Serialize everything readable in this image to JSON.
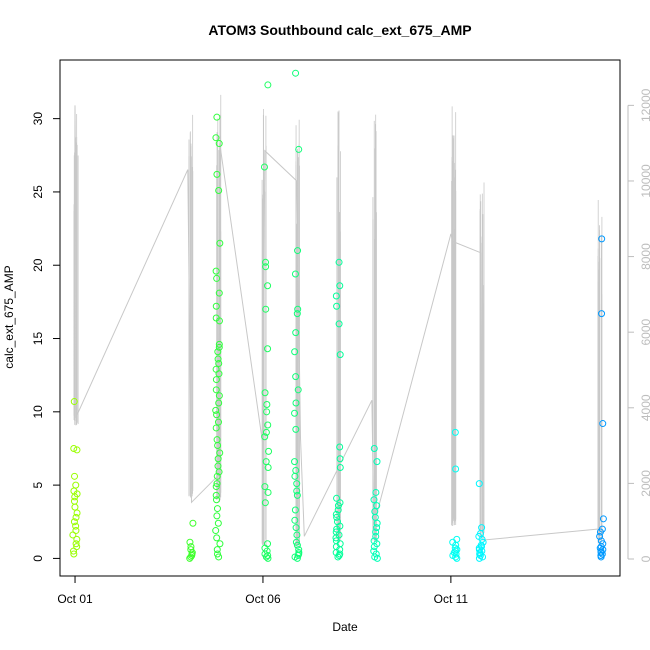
{
  "chart_data": {
    "type": "scatter",
    "title": "ATOM3 Southbound calc_ext_675_AMP",
    "xlabel": "Date",
    "ylabel": "calc_ext_675_AMP",
    "x_ticks": [
      "Oct 01",
      "Oct 06",
      "Oct 11"
    ],
    "x_tick_days": [
      1,
      6,
      11
    ],
    "xlim": [
      0.6,
      15.5
    ],
    "ylim": [
      -1.2,
      34.0
    ],
    "y_ticks": [
      0,
      5,
      10,
      15,
      20,
      25,
      30
    ],
    "y2_ticks": [
      0,
      2000,
      4000,
      6000,
      8000,
      10000,
      12000
    ],
    "y2lim": [
      -450,
      13200
    ],
    "grid": false,
    "legend": "none",
    "colors": {
      "secondary_line": "#c8c8c8",
      "right_axis": "#bdbdbd",
      "point_gradient": [
        "#99ff00",
        "#33ff33",
        "#00ff99",
        "#00ffff",
        "#0099ff"
      ]
    },
    "series": [
      {
        "points": [
          {
            "day": 1.0,
            "values": [
              10.7,
              7.5,
              7.4,
              5.6,
              5.0,
              4.6,
              4.4,
              4.2,
              3.9,
              3.5,
              3.1,
              2.8,
              2.5,
              2.2,
              1.9,
              1.6,
              1.3,
              1.0,
              0.8,
              0.5,
              0.3
            ]
          },
          {
            "day": 4.1,
            "values": [
              2.4,
              1.1,
              0.8,
              0.6,
              0.4,
              0.3,
              0.2,
              0.1,
              0.0
            ]
          },
          {
            "day": 4.8,
            "values": [
              30.1,
              28.7,
              28.3,
              26.2,
              25.1,
              21.5,
              19.6,
              19.1,
              18.1,
              17.2,
              16.4,
              16.2,
              14.6,
              14.4,
              14.1,
              13.6,
              13.3,
              12.9,
              12.6,
              12.2,
              11.5,
              11.1,
              10.6,
              10.1,
              9.8,
              9.3,
              8.9,
              8.1,
              7.7,
              7.2,
              6.8,
              6.3,
              5.9,
              5.6,
              5.1,
              4.9,
              4.3,
              4.0,
              3.4,
              2.9,
              2.4,
              1.9,
              1.4,
              1.0,
              0.6,
              0.3,
              0.1
            ]
          },
          {
            "day": 6.1,
            "values": [
              32.3,
              26.7,
              20.2,
              19.9,
              18.6,
              17.0,
              14.3,
              11.3,
              10.5,
              10.0,
              9.1,
              8.6,
              8.3,
              7.3,
              6.6,
              6.2,
              4.9,
              4.5,
              3.8,
              1.0,
              0.7,
              0.5,
              0.3,
              0.2,
              0.1,
              0.0
            ]
          },
          {
            "day": 6.9,
            "values": [
              33.1,
              27.9,
              21.0,
              19.4,
              17.0,
              16.7,
              15.4,
              14.1,
              12.4,
              11.5,
              10.6,
              9.9,
              8.8,
              6.6,
              6.0,
              5.6,
              5.1,
              4.6,
              4.3,
              3.3,
              2.6,
              2.1,
              1.6,
              1.1,
              0.9,
              0.6,
              0.4,
              0.3,
              0.2,
              0.1,
              0.0
            ]
          },
          {
            "day": 8.0,
            "values": [
              20.2,
              18.6,
              17.9,
              17.2,
              16.0,
              13.9,
              7.6,
              6.8,
              6.2,
              4.1,
              3.8,
              3.6,
              3.3,
              3.0,
              2.8,
              2.5,
              2.2,
              2.0,
              1.8,
              1.6,
              1.4,
              1.2,
              1.0,
              0.8,
              0.6,
              0.4,
              0.3,
              0.2,
              0.1
            ]
          },
          {
            "day": 9.0,
            "values": [
              7.5,
              6.6,
              4.5,
              4.0,
              3.6,
              3.2,
              2.8,
              2.4,
              2.1,
              1.8,
              1.5,
              1.2,
              1.0,
              0.8,
              0.5,
              0.3,
              0.1,
              0.0
            ]
          },
          {
            "day": 11.1,
            "values": [
              8.6,
              6.1,
              1.3,
              1.1,
              0.9,
              0.7,
              0.6,
              0.5,
              0.4,
              0.3,
              0.2,
              0.1,
              0.0
            ]
          },
          {
            "day": 11.8,
            "values": [
              5.1,
              2.1,
              1.7,
              1.5,
              1.3,
              1.1,
              0.9,
              0.8,
              0.7,
              0.6,
              0.5,
              0.4,
              0.3,
              0.2,
              0.1,
              0.0
            ]
          },
          {
            "day": 15.0,
            "values": [
              21.8,
              16.7,
              9.2,
              2.7,
              2.0,
              1.8,
              1.5,
              1.2,
              1.0,
              0.8,
              0.7,
              0.6,
              0.5,
              0.4,
              0.3,
              0.2,
              0.1
            ]
          }
        ]
      },
      {
        "axis": "right",
        "style": "line",
        "bursts": [
          {
            "day": 1.0,
            "max": 12000,
            "min": 3500
          },
          {
            "day": 4.05,
            "max": 11800,
            "min": 1600
          },
          {
            "day": 4.8,
            "max": 12400,
            "min": 1500
          },
          {
            "day": 6.0,
            "max": 12200,
            "min": 300
          },
          {
            "day": 6.9,
            "max": 11700,
            "min": 300
          },
          {
            "day": 8.0,
            "max": 12000,
            "min": 400
          },
          {
            "day": 8.95,
            "max": 12000,
            "min": 400
          },
          {
            "day": 11.05,
            "max": 12300,
            "min": 800
          },
          {
            "day": 11.8,
            "max": 10000,
            "min": 500
          },
          {
            "day": 14.95,
            "max": 9900,
            "min": 400
          }
        ],
        "path": [
          [
            0.98,
            4800
          ],
          [
            1.0,
            12000
          ],
          [
            1.05,
            3800
          ],
          [
            4.0,
            10300
          ],
          [
            4.05,
            5800
          ],
          [
            4.1,
            1500
          ],
          [
            4.8,
            2200
          ],
          [
            4.85,
            11000
          ],
          [
            6.0,
            3000
          ],
          [
            6.05,
            10800
          ],
          [
            6.9,
            10000
          ],
          [
            7.0,
            3200
          ],
          [
            7.1,
            600
          ],
          [
            8.9,
            4200
          ],
          [
            8.95,
            900
          ],
          [
            11.0,
            8600
          ],
          [
            11.05,
            8400
          ],
          [
            11.8,
            8100
          ],
          [
            11.85,
            500
          ],
          [
            15.0,
            800
          ]
        ]
      }
    ]
  }
}
